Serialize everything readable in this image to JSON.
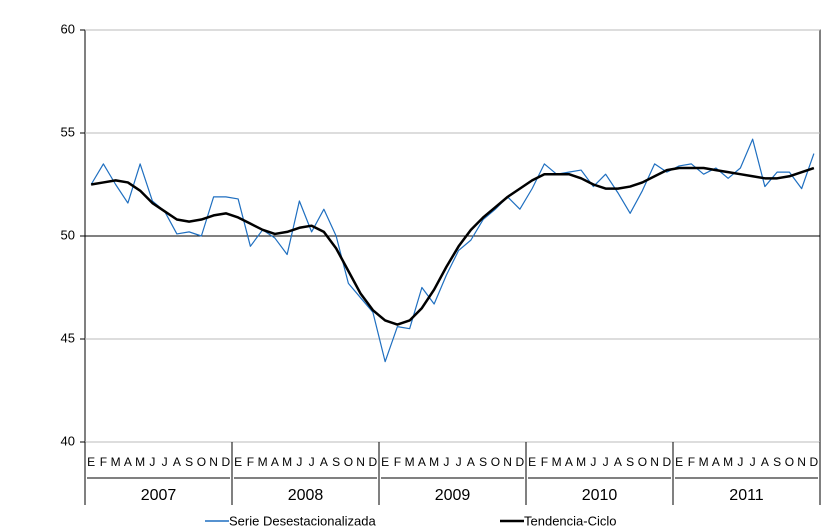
{
  "chart_data": {
    "type": "line",
    "categories": [
      "E",
      "F",
      "M",
      "A",
      "M",
      "J",
      "J",
      "A",
      "S",
      "O",
      "N",
      "D",
      "E",
      "F",
      "M",
      "A",
      "M",
      "J",
      "J",
      "A",
      "S",
      "O",
      "N",
      "D",
      "E",
      "F",
      "M",
      "A",
      "M",
      "J",
      "J",
      "A",
      "S",
      "O",
      "N",
      "D",
      "E",
      "F",
      "M",
      "A",
      "M",
      "J",
      "J",
      "A",
      "S",
      "O",
      "N",
      "D",
      "E",
      "F",
      "M",
      "A",
      "M",
      "J",
      "J",
      "A",
      "S",
      "O",
      "N",
      "D"
    ],
    "category_groups": [
      "2007",
      "2008",
      "2009",
      "2010",
      "2011"
    ],
    "series": [
      {
        "name": "Serie Desestacionalizada",
        "color": "#1f6fc0",
        "values": [
          52.5,
          53.5,
          52.5,
          51.6,
          53.5,
          51.7,
          51.2,
          50.1,
          50.2,
          50.0,
          51.9,
          51.9,
          51.8,
          49.5,
          50.3,
          49.9,
          49.1,
          51.7,
          50.2,
          51.3,
          50.0,
          47.7,
          47.0,
          46.3,
          43.9,
          45.6,
          45.5,
          47.5,
          46.7,
          48.1,
          49.3,
          49.8,
          50.8,
          51.3,
          51.9,
          51.3,
          52.3,
          53.5,
          53.0,
          53.1,
          53.2,
          52.4,
          53.0,
          52.1,
          51.1,
          52.2,
          53.5,
          53.1,
          53.4,
          53.5,
          53.0,
          53.3,
          52.8,
          53.3,
          54.7,
          52.4,
          53.1,
          53.1,
          52.3,
          54.0
        ]
      },
      {
        "name": "Tendencia-Ciclo",
        "color": "#000000",
        "values": [
          52.5,
          52.6,
          52.7,
          52.6,
          52.2,
          51.6,
          51.2,
          50.8,
          50.7,
          50.8,
          51.0,
          51.1,
          50.9,
          50.6,
          50.3,
          50.1,
          50.2,
          50.4,
          50.5,
          50.2,
          49.4,
          48.3,
          47.2,
          46.4,
          45.9,
          45.7,
          45.9,
          46.5,
          47.4,
          48.5,
          49.5,
          50.3,
          50.9,
          51.4,
          51.9,
          52.3,
          52.7,
          53.0,
          53.0,
          53.0,
          52.8,
          52.5,
          52.3,
          52.3,
          52.4,
          52.6,
          52.9,
          53.2,
          53.3,
          53.3,
          53.3,
          53.2,
          53.1,
          53.0,
          52.9,
          52.8,
          52.8,
          52.9,
          53.1,
          53.3
        ]
      }
    ],
    "ylim": [
      40,
      60
    ],
    "yticks": [
      40,
      45,
      50,
      55,
      60
    ],
    "grid": true,
    "x_axis_crosses": 50,
    "legend": "bottom"
  }
}
